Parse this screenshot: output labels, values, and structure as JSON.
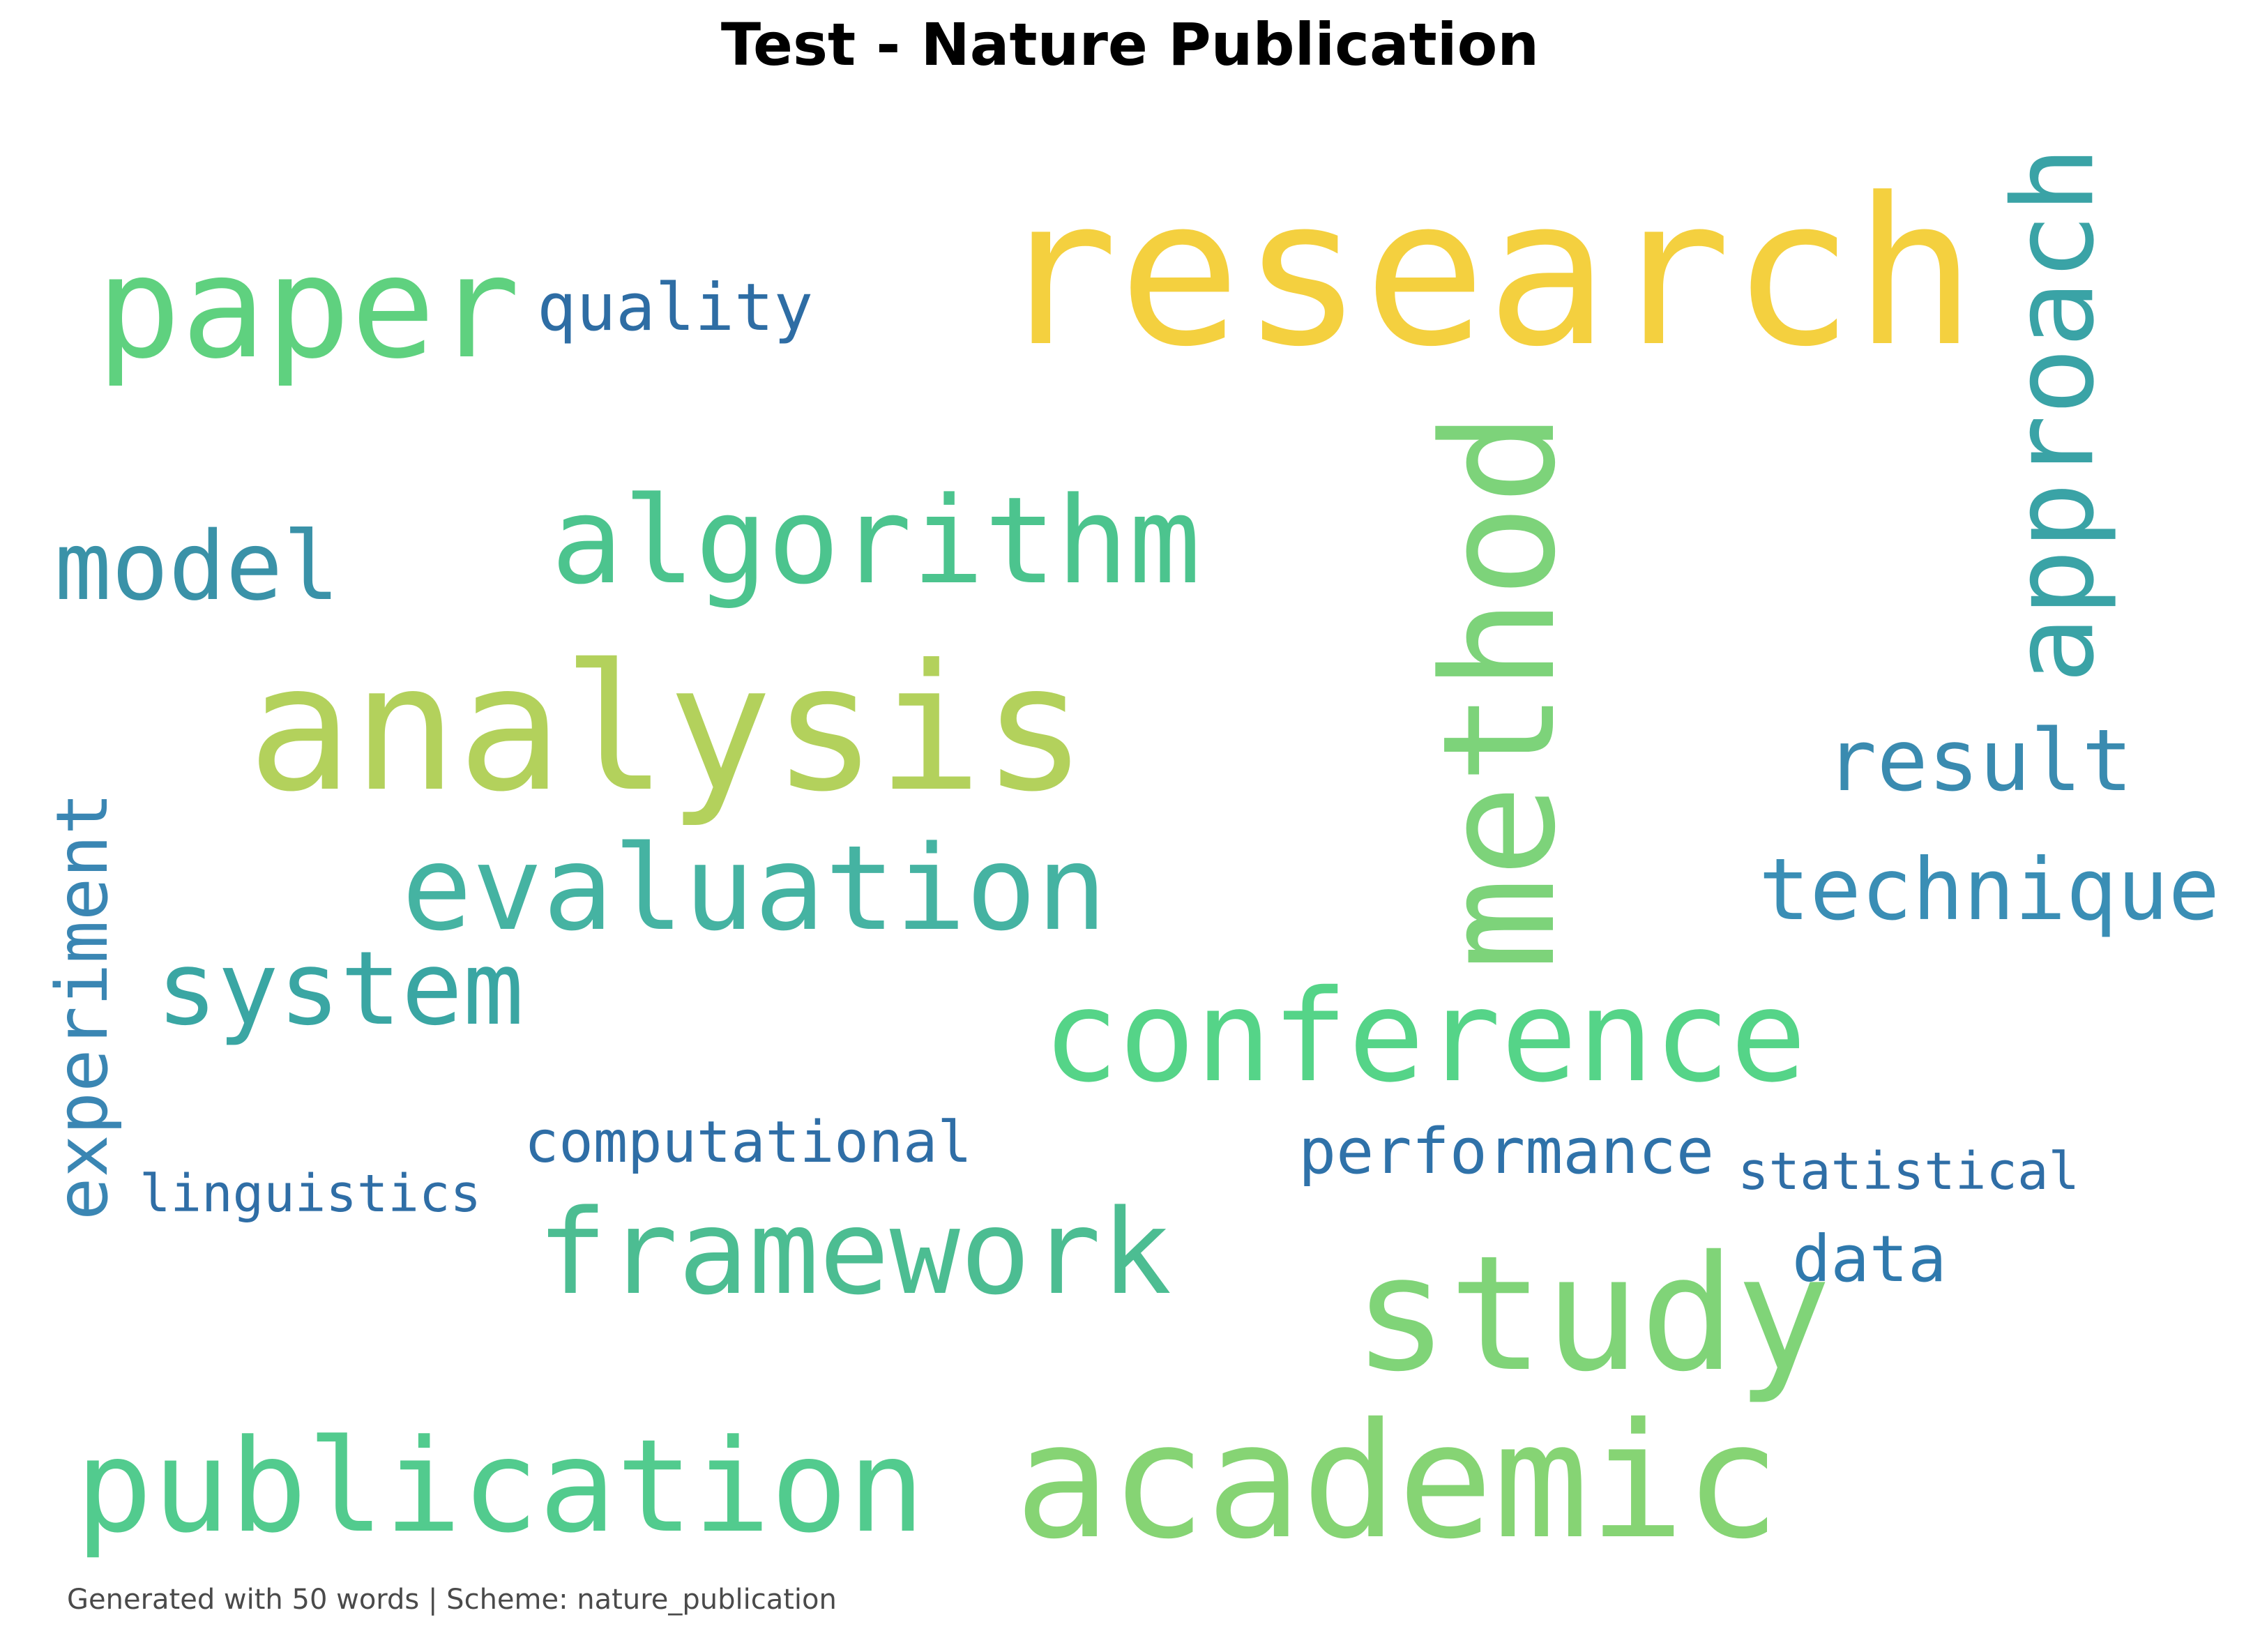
{
  "title": "Test - Nature Publication",
  "footer": "Generated with 50 words | Scheme: nature_publication",
  "words": [
    {
      "text": "research",
      "color": "#f4d03f"
    },
    {
      "text": "paper",
      "color": "#5fd17f"
    },
    {
      "text": "quality",
      "color": "#2e6da4"
    },
    {
      "text": "approach",
      "color": "#3aa3a6"
    },
    {
      "text": "algorithm",
      "color": "#4cc48e"
    },
    {
      "text": "model",
      "color": "#3a92a8"
    },
    {
      "text": "method",
      "color": "#7dd37a"
    },
    {
      "text": "analysis",
      "color": "#b3d15c"
    },
    {
      "text": "result",
      "color": "#3a8bb0"
    },
    {
      "text": "technique",
      "color": "#3a8eb5"
    },
    {
      "text": "evaluation",
      "color": "#45b3a2"
    },
    {
      "text": "experiment",
      "color": "#3a86b3"
    },
    {
      "text": "system",
      "color": "#3aa6a3"
    },
    {
      "text": "conference",
      "color": "#55d488"
    },
    {
      "text": "computational",
      "color": "#2f6ea6"
    },
    {
      "text": "performance",
      "color": "#2f72a9"
    },
    {
      "text": "statistical",
      "color": "#2f6ea6"
    },
    {
      "text": "linguistics",
      "color": "#2f6ea6"
    },
    {
      "text": "framework",
      "color": "#4cbd92"
    },
    {
      "text": "data",
      "color": "#2f79ad"
    },
    {
      "text": "study",
      "color": "#80d478"
    },
    {
      "text": "publication",
      "color": "#52cb8e"
    },
    {
      "text": "academic",
      "color": "#86d474"
    }
  ]
}
